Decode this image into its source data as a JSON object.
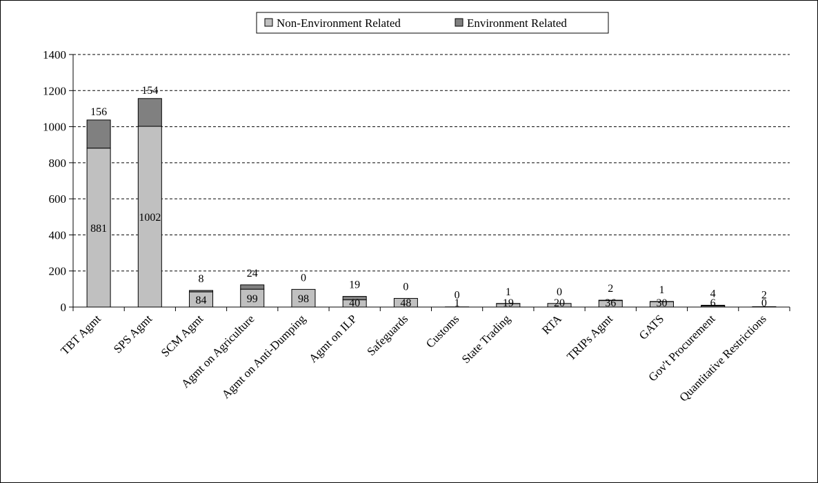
{
  "chart_data": {
    "type": "bar",
    "stacked": true,
    "title": "",
    "xlabel": "",
    "ylabel": "",
    "ylim": [
      0,
      1400
    ],
    "yticks": [
      0,
      200,
      400,
      600,
      800,
      1000,
      1200,
      1400
    ],
    "grid": "horizontal-dashed",
    "legend_position": "top-center",
    "categories": [
      "TBT Agmt",
      "SPS Agmt",
      "SCM Agmt",
      "Agmt on Agriculture",
      "Agmt on Anti-Dumping",
      "Agmt on ILP",
      "Safeguards",
      "Customs",
      "State Trading",
      "RTA",
      "TRIPs Agmt",
      "GATS",
      "Gov't Procurement",
      "Quantitative Restrictions"
    ],
    "series": [
      {
        "name": "Non-Environment Related",
        "color": "#c0c0c0",
        "values": [
          881,
          1002,
          84,
          99,
          98,
          40,
          48,
          1,
          19,
          20,
          36,
          30,
          6,
          0
        ]
      },
      {
        "name": "Environment Related",
        "color": "#808080",
        "values": [
          156,
          154,
          8,
          24,
          0,
          19,
          0,
          0,
          1,
          0,
          2,
          1,
          4,
          2
        ]
      }
    ]
  }
}
